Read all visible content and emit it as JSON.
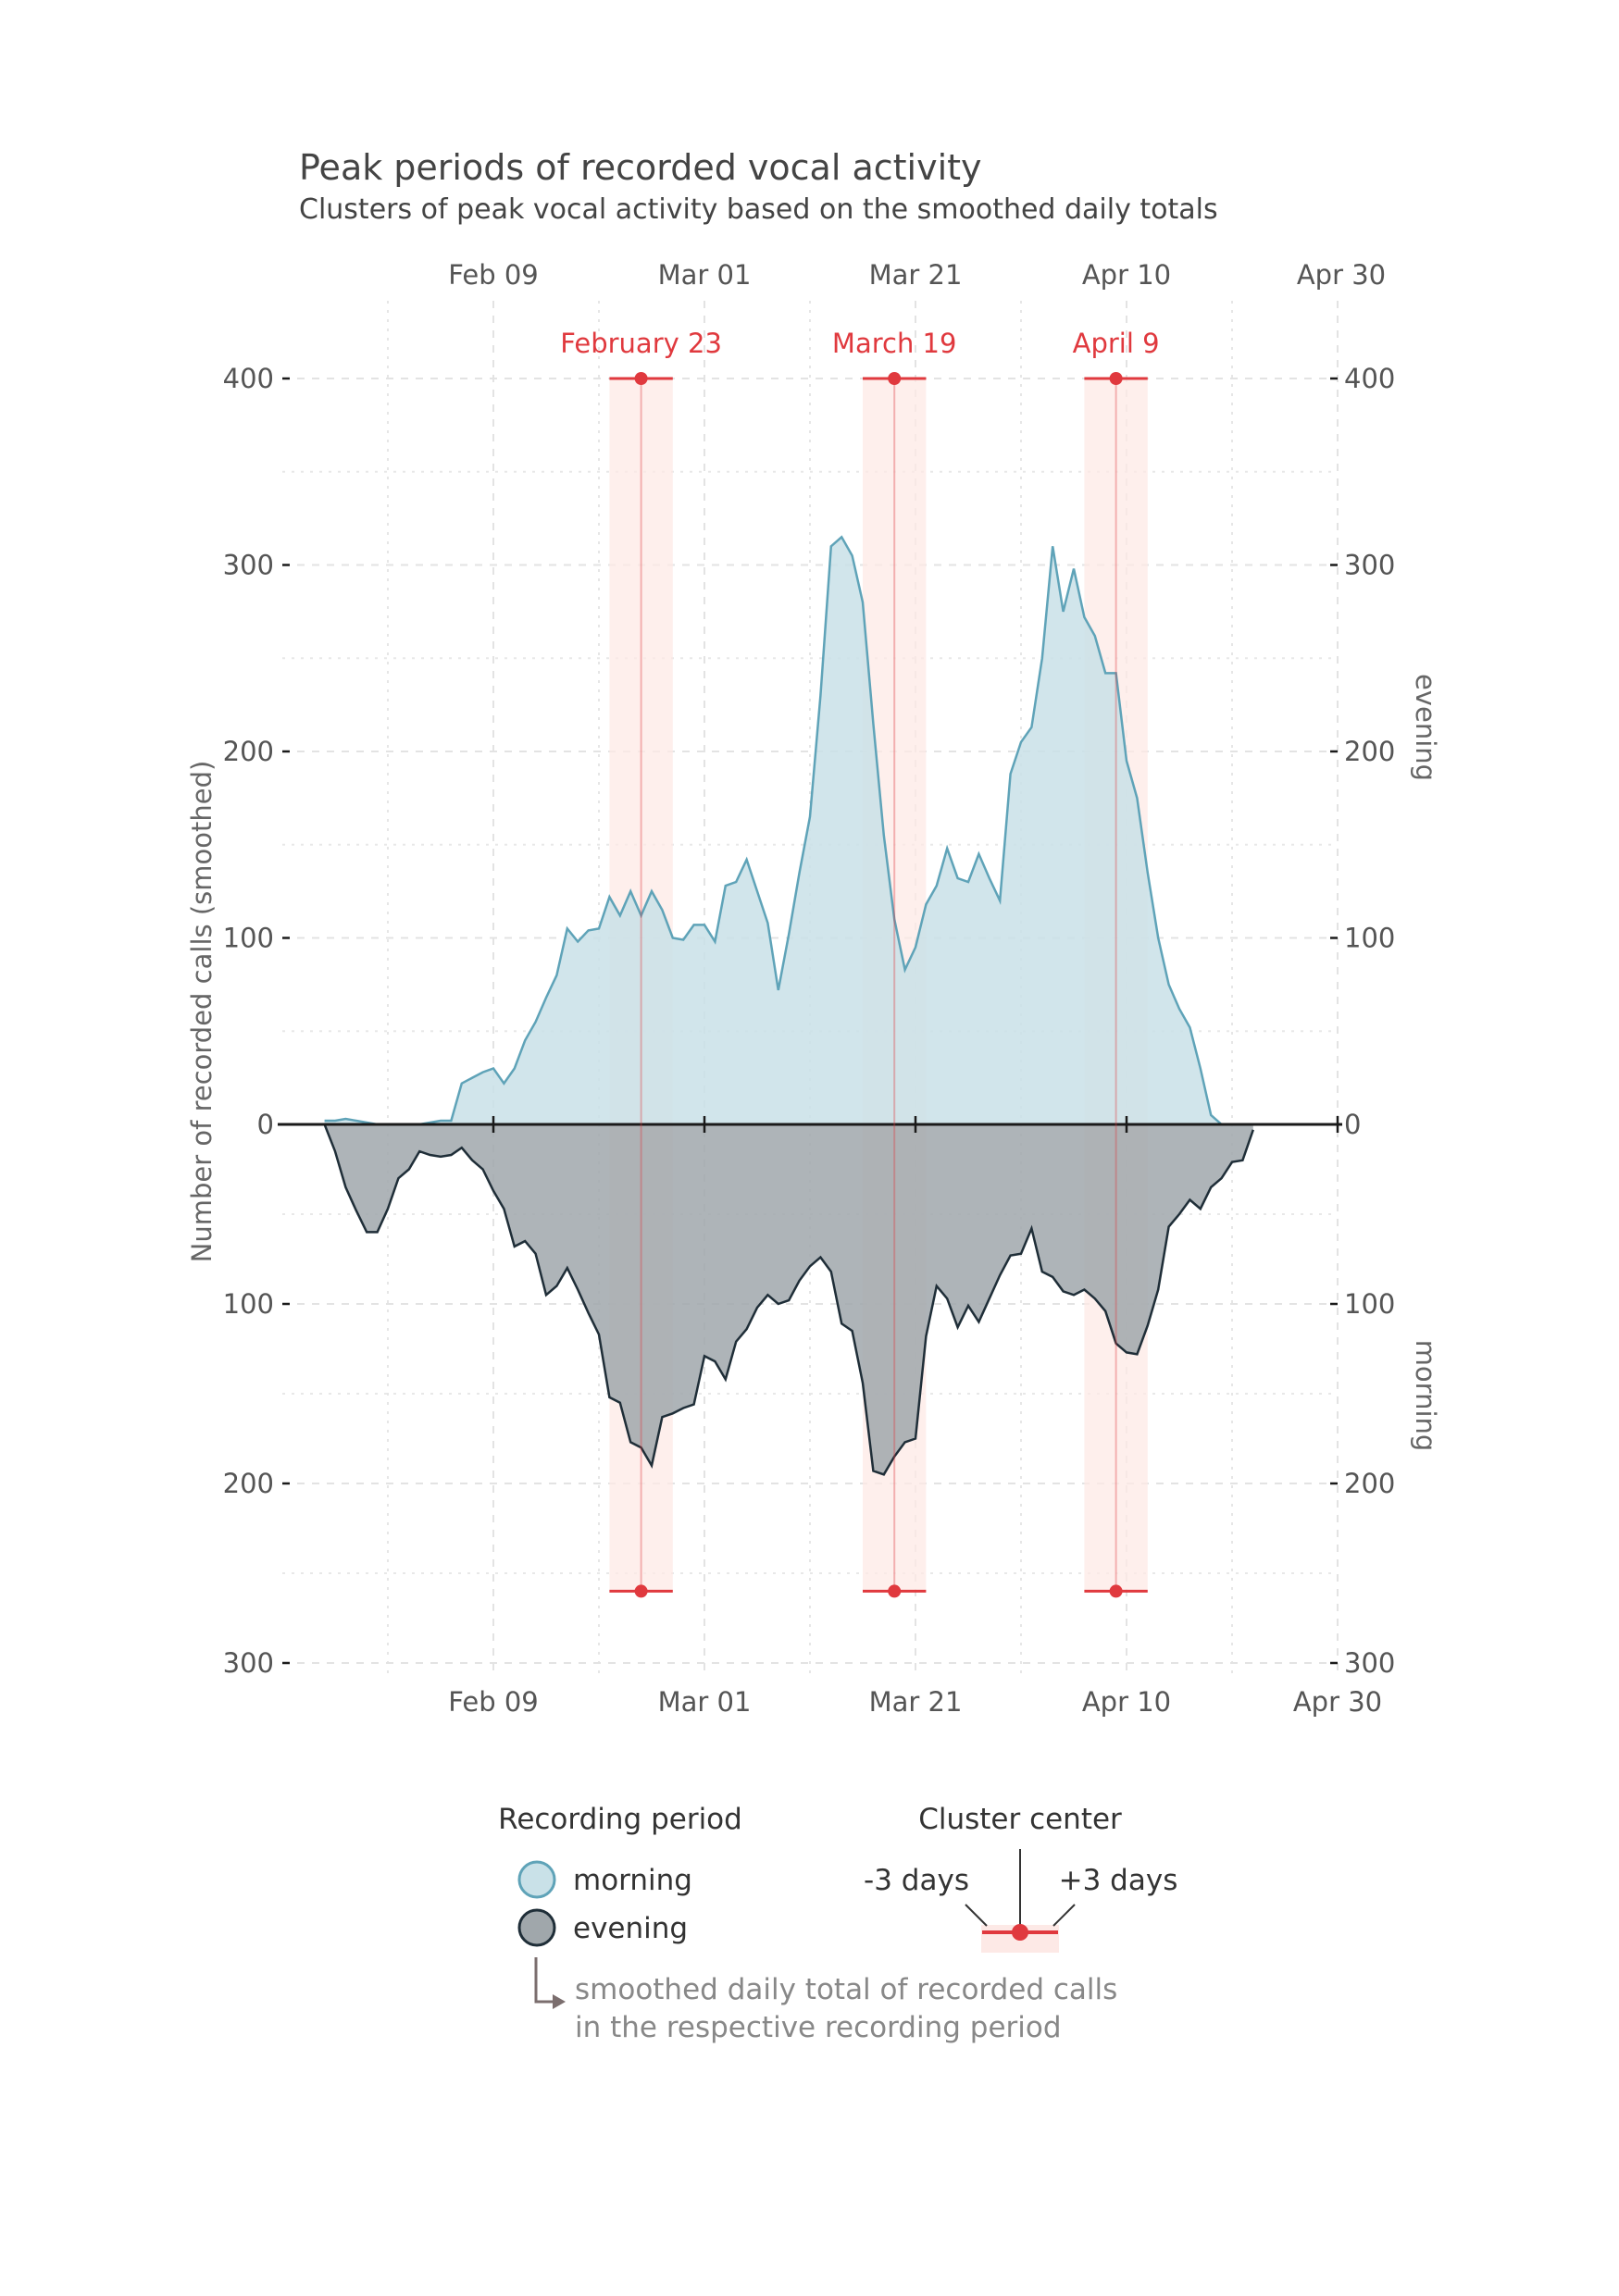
{
  "chart_data": {
    "type": "area",
    "title": "Peak periods of recorded vocal activity",
    "subtitle": "Clusters of peak vocal activity based on the smoothed daily totals",
    "ylabel": "Number of recorded calls (smoothed)",
    "right_label_top": "evening",
    "right_label_bottom": "morning",
    "x_ticks": [
      "Feb 09",
      "Mar 01",
      "Mar 21",
      "Apr 10",
      "Apr 30"
    ],
    "x_tick_days": [
      40,
      60,
      80,
      100,
      120
    ],
    "xlim": [
      20,
      120
    ],
    "upper_ylim": [
      0,
      400
    ],
    "lower_ylim": [
      0,
      300
    ],
    "upper_y_ticks": [
      0,
      100,
      200,
      300,
      400
    ],
    "upper_y_tick_labels": [
      "0",
      "100",
      "200",
      "300",
      "400"
    ],
    "lower_y_ticks": [
      100,
      200,
      300
    ],
    "lower_y_tick_labels": [
      "100",
      "200",
      "300"
    ],
    "upper_series": {
      "name": "morning",
      "color": "#5fa3b8",
      "fill": "#c9e1e8",
      "day_start": 24,
      "values": [
        2,
        2,
        3,
        2,
        1,
        0,
        0,
        0,
        0,
        0,
        1,
        2,
        2,
        22,
        25,
        28,
        30,
        22,
        30,
        45,
        55,
        68,
        80,
        105,
        98,
        104,
        105,
        122,
        112,
        125,
        112,
        125,
        115,
        100,
        99,
        107,
        107,
        98,
        128,
        130,
        142,
        125,
        108,
        72,
        102,
        135,
        165,
        230,
        310,
        315,
        305,
        280,
        215,
        155,
        110,
        83,
        95,
        118,
        128,
        148,
        132,
        130,
        145,
        132,
        120,
        188,
        205,
        213,
        250,
        310,
        275,
        298,
        272,
        262,
        242,
        242,
        195,
        175,
        135,
        100,
        75,
        62,
        52,
        30,
        5,
        0
      ]
    },
    "lower_series": {
      "name": "evening",
      "color": "#1f2e38",
      "fill": "#a0a7ab",
      "day_start": 24,
      "values": [
        0,
        15,
        35,
        48,
        60,
        60,
        47,
        30,
        25,
        15,
        17,
        18,
        17,
        13,
        20,
        25,
        37,
        47,
        68,
        65,
        72,
        95,
        90,
        80,
        92,
        105,
        117,
        152,
        155,
        177,
        180,
        190,
        163,
        161,
        158,
        156,
        129,
        132,
        142,
        121,
        114,
        102,
        95,
        100,
        98,
        87,
        79,
        74,
        82,
        111,
        115,
        144,
        193,
        195,
        185,
        177,
        175,
        118,
        90,
        97,
        113,
        101,
        110,
        97,
        84,
        73,
        72,
        58,
        82,
        85,
        93,
        95,
        92,
        97,
        104,
        122,
        127,
        128,
        112,
        92,
        57,
        50,
        42,
        47,
        35,
        30,
        21,
        20,
        3
      ]
    },
    "clusters": [
      {
        "label": "February 23",
        "center_day": 54
      },
      {
        "label": "March 19",
        "center_day": 78
      },
      {
        "label": "April 9",
        "center_day": 99
      }
    ],
    "cluster_half_width_days": 3,
    "cluster_color": "#e0393e",
    "cluster_band_color": "#fde9e6"
  },
  "legend": {
    "period_title": "Recording period",
    "morning": "morning",
    "evening": "evening",
    "center_title": "Cluster center",
    "minus_label": "-3 days",
    "plus_label": "+3 days",
    "note_line1": "smoothed daily total of recorded calls",
    "note_line2": "in the respective recording period"
  }
}
